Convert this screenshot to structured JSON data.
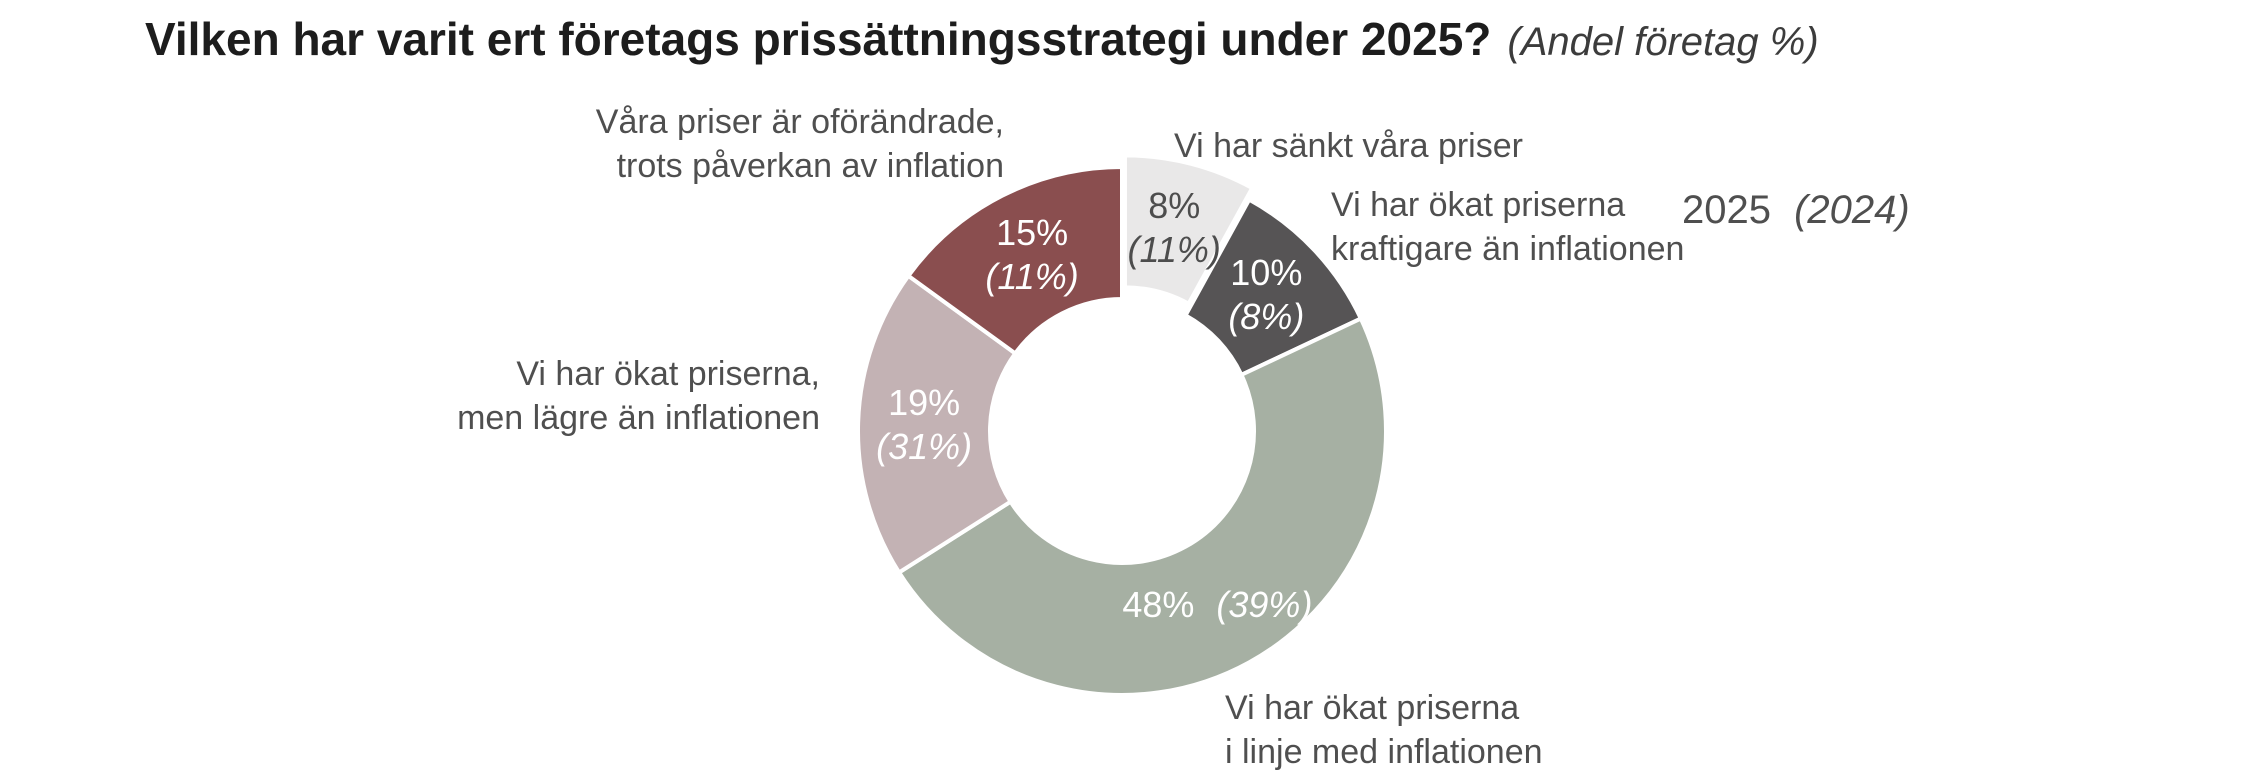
{
  "header": {
    "title": "Vilken har varit ert företags prissättningsstrategi under 2025?",
    "subtitle": "(Andel företag %)"
  },
  "legend": {
    "current": "2025",
    "previous": "(2024)"
  },
  "annotations": {
    "oforandrade": {
      "line1": "Våra priser är oförändrade,",
      "line2": "trots påverkan av inflation"
    },
    "sankt": {
      "line1": "Vi har sänkt våra priser"
    },
    "kraftigare": {
      "line1": "Vi har ökat priserna",
      "line2": "kraftigare än inflationen"
    },
    "lagre": {
      "line1": "Vi har ökat priserna,",
      "line2": "men lägre än inflationen"
    },
    "linje": {
      "line1": "Vi har ökat priserna",
      "line2": "i linje med inflationen"
    }
  },
  "chart_data": {
    "type": "pie",
    "variant": "donut",
    "title": "Vilken har varit ert företags prissättningsstrategi under 2025?",
    "subtitle": "(Andel företag %)",
    "units": "% of companies",
    "legend_position": "right",
    "order": "clockwise from 12 o'clock",
    "series": [
      {
        "name": "2025",
        "values": [
          8,
          10,
          48,
          19,
          15
        ]
      },
      {
        "name": "2024",
        "values": [
          11,
          8,
          39,
          31,
          11
        ]
      }
    ],
    "segments": [
      {
        "name": "Vi har sänkt våra priser",
        "value_2025": 8,
        "value_2024": 11,
        "label_2025": "8%",
        "label_2024": "(11%)",
        "color": "#E9E8E8",
        "label_color": "#4D4D4D",
        "exploded": true
      },
      {
        "name": "Vi har ökat priserna kraftigare än inflationen",
        "value_2025": 10,
        "value_2024": 8,
        "label_2025": "10%",
        "label_2024": "(8%)",
        "color": "#565455",
        "label_color": "#FFFFFF",
        "exploded": false
      },
      {
        "name": "Vi har ökat priserna i linje med inflationen",
        "value_2025": 48,
        "value_2024": 39,
        "label_2025": "48%",
        "label_2024": "(39%)",
        "color": "#A6B0A3",
        "label_color": "#FFFFFF",
        "exploded": false
      },
      {
        "name": "Vi har ökat priserna, men lägre än inflationen",
        "value_2025": 19,
        "value_2024": 31,
        "label_2025": "19%",
        "label_2024": "(31%)",
        "color": "#C3B2B4",
        "label_color": "#FFFFFF",
        "exploded": false
      },
      {
        "name": "Våra priser är oförändrade, trots påverkan av inflation",
        "value_2025": 15,
        "value_2024": 11,
        "label_2025": "15%",
        "label_2024": "(11%)",
        "color": "#8A4E4F",
        "label_color": "#FFFFFF",
        "exploded": false
      }
    ]
  }
}
